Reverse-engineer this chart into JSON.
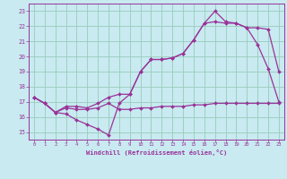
{
  "background_color": "#c8eaf0",
  "grid_color": "#99ccbb",
  "line_color": "#993399",
  "xlabel": "Windchill (Refroidissement éolien,°C)",
  "xlim": [
    -0.5,
    23.5
  ],
  "ylim": [
    14.5,
    23.5
  ],
  "yticks": [
    15,
    16,
    17,
    18,
    19,
    20,
    21,
    22,
    23
  ],
  "xticks": [
    0,
    1,
    2,
    3,
    4,
    5,
    6,
    7,
    8,
    9,
    10,
    11,
    12,
    13,
    14,
    15,
    16,
    17,
    18,
    19,
    20,
    21,
    22,
    23
  ],
  "series": [
    {
      "x": [
        0,
        1,
        2,
        3,
        4,
        5,
        6,
        7,
        8,
        9,
        10,
        11,
        12,
        13,
        14,
        15,
        16,
        17,
        18,
        19,
        20,
        21,
        22,
        23
      ],
      "y": [
        17.3,
        16.9,
        16.3,
        16.2,
        15.8,
        15.5,
        15.2,
        14.8,
        16.9,
        17.5,
        19.0,
        19.8,
        19.8,
        19.9,
        20.2,
        21.1,
        22.2,
        23.0,
        22.3,
        22.2,
        21.9,
        20.8,
        19.2,
        17.0
      ]
    },
    {
      "x": [
        0,
        1,
        2,
        3,
        4,
        5,
        6,
        7,
        8,
        9,
        10,
        11,
        12,
        13,
        14,
        15,
        16,
        17,
        18,
        19,
        20,
        21,
        22,
        23
      ],
      "y": [
        17.3,
        16.9,
        16.3,
        16.7,
        16.7,
        16.6,
        16.9,
        17.3,
        17.5,
        17.5,
        19.0,
        19.8,
        19.8,
        19.9,
        20.2,
        21.1,
        22.2,
        22.3,
        22.2,
        22.2,
        21.9,
        21.9,
        21.8,
        19.0
      ]
    },
    {
      "x": [
        0,
        1,
        2,
        3,
        4,
        5,
        6,
        7,
        8,
        9,
        10,
        11,
        12,
        13,
        14,
        15,
        16,
        17,
        18,
        19,
        20,
        21,
        22,
        23
      ],
      "y": [
        17.3,
        16.9,
        16.3,
        16.6,
        16.5,
        16.5,
        16.6,
        16.9,
        16.5,
        16.5,
        16.6,
        16.6,
        16.7,
        16.7,
        16.7,
        16.8,
        16.8,
        16.9,
        16.9,
        16.9,
        16.9,
        16.9,
        16.9,
        16.9
      ]
    }
  ]
}
